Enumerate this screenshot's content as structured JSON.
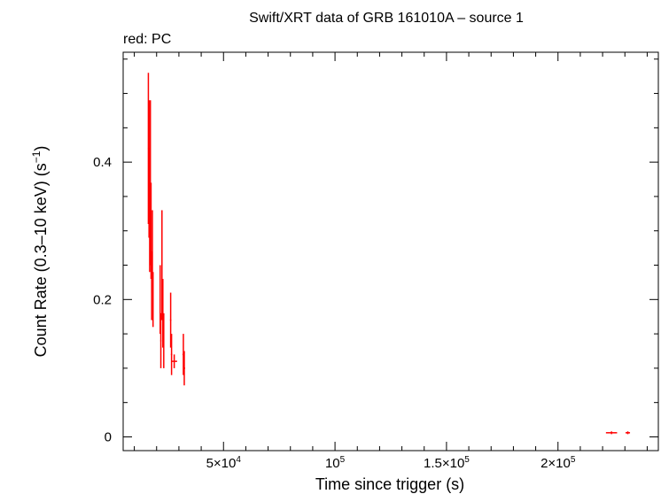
{
  "chart_data": {
    "type": "scatter",
    "title": "Swift/XRT data of GRB 161010A – source 1",
    "subtitle": "red: PC",
    "xlabel": "Time since trigger (s)",
    "ylabel_main": "Count Rate (0.3–10 keV) (s",
    "ylabel_sup": "−1",
    "ylabel_end": ")",
    "xlim": [
      5000,
      245000
    ],
    "ylim": [
      -0.02,
      0.56
    ],
    "x_ticks": [
      {
        "value": 50000,
        "mantissa": "5×10",
        "exp": "4"
      },
      {
        "value": 100000,
        "mantissa": "10",
        "exp": "5"
      },
      {
        "value": 150000,
        "mantissa": "1.5×10",
        "exp": "5"
      },
      {
        "value": 200000,
        "mantissa": "2×10",
        "exp": "5"
      }
    ],
    "y_ticks": [
      {
        "value": 0,
        "label": "0"
      },
      {
        "value": 0.2,
        "label": "0.2"
      },
      {
        "value": 0.4,
        "label": "0.4"
      }
    ],
    "grid": false,
    "color": "#ff0000",
    "series": [
      {
        "points": [
          {
            "x": 16300,
            "xerr": 200,
            "y": 0.42,
            "yerr": 0.11
          },
          {
            "x": 16600,
            "xerr": 200,
            "y": 0.39,
            "yerr": 0.1
          },
          {
            "x": 16900,
            "xerr": 200,
            "y": 0.33,
            "yerr": 0.09
          },
          {
            "x": 17200,
            "xerr": 200,
            "y": 0.37,
            "yerr": 0.12
          },
          {
            "x": 17500,
            "xerr": 200,
            "y": 0.3,
            "yerr": 0.07
          },
          {
            "x": 17800,
            "xerr": 200,
            "y": 0.22,
            "yerr": 0.05
          },
          {
            "x": 18100,
            "xerr": 200,
            "y": 0.27,
            "yerr": 0.06
          },
          {
            "x": 18400,
            "xerr": 200,
            "y": 0.2,
            "yerr": 0.04
          },
          {
            "x": 21600,
            "xerr": 250,
            "y": 0.2,
            "yerr": 0.05
          },
          {
            "x": 21900,
            "xerr": 250,
            "y": 0.14,
            "yerr": 0.04
          },
          {
            "x": 22400,
            "xerr": 250,
            "y": 0.25,
            "yerr": 0.08
          },
          {
            "x": 22800,
            "xerr": 250,
            "y": 0.18,
            "yerr": 0.05
          },
          {
            "x": 23200,
            "xerr": 250,
            "y": 0.14,
            "yerr": 0.04
          },
          {
            "x": 26300,
            "xerr": 300,
            "y": 0.17,
            "yerr": 0.04
          },
          {
            "x": 26700,
            "xerr": 300,
            "y": 0.12,
            "yerr": 0.03
          },
          {
            "x": 27900,
            "xerr": 1300,
            "y": 0.11,
            "yerr": 0.01
          },
          {
            "x": 32000,
            "xerr": 400,
            "y": 0.12,
            "yerr": 0.03
          },
          {
            "x": 32400,
            "xerr": 400,
            "y": 0.1,
            "yerr": 0.025
          },
          {
            "x": 224000,
            "xerr": 2500,
            "y": 0.006,
            "yerr": 0.002
          },
          {
            "x": 231300,
            "xerr": 1000,
            "y": 0.006,
            "yerr": 0.002
          }
        ]
      }
    ]
  }
}
